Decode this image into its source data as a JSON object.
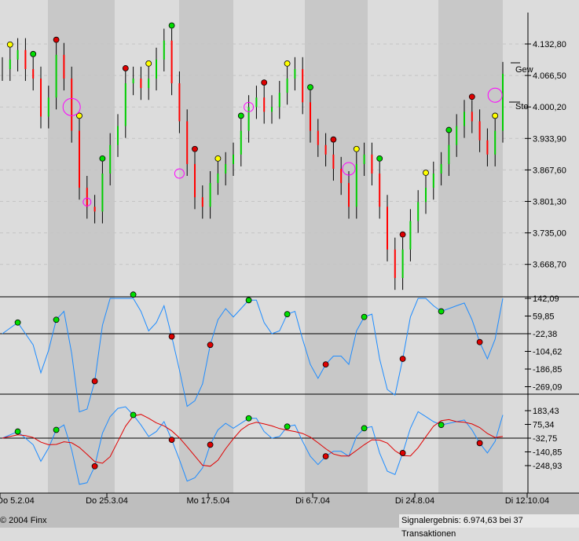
{
  "chart_data": {
    "type": "line",
    "title": "",
    "price_axis": {
      "ticks": [
        4132.8,
        4066.5,
        4000.2,
        3933.9,
        3867.6,
        3801.3,
        3735.0,
        3668.7
      ],
      "labels": [
        "4.132,80",
        "4.066,50",
        "4.000,20",
        "3.933,90",
        "3.867,60",
        "3.801,30",
        "3.735,00",
        "3.668,70"
      ]
    },
    "osc1_axis": {
      "ticks": [
        142.09,
        59.85,
        -22.38,
        -104.62,
        -186.85,
        -269.09
      ],
      "labels": [
        "142,09",
        "59,85",
        "-22,38",
        "-104,62",
        "-186,85",
        "-269,09"
      ]
    },
    "osc2_axis": {
      "ticks": [
        183.43,
        75.34,
        -32.75,
        -140.85,
        -248.93
      ],
      "labels": [
        "183,43",
        "75,34",
        "-32,75",
        "-140,85",
        "-248,93"
      ]
    },
    "x_labels": [
      "Do 5.2.04",
      "Do 25.3.04",
      "Mo 17.5.04",
      "Di 6.7.04",
      "Di 24.8.04",
      "Di 12.10.04"
    ],
    "closes": [
      4080,
      4100,
      4120,
      4080,
      4060,
      3980,
      4020,
      4110,
      4060,
      3950,
      3830,
      3790,
      3780,
      3860,
      3920,
      3960,
      4050,
      4060,
      4040,
      4060,
      4100,
      4140,
      4050,
      3970,
      3880,
      3810,
      3790,
      3840,
      3860,
      3880,
      3900,
      3950,
      4000,
      4020,
      3990,
      4000,
      4030,
      4060,
      4080,
      4010,
      3950,
      3920,
      3900,
      3870,
      3840,
      3790,
      3880,
      3900,
      3860,
      3790,
      3700,
      3640,
      3700,
      3760,
      3800,
      3830,
      3860,
      3880,
      3920,
      3960,
      3990,
      3970,
      3930,
      3900,
      3950,
      4070
    ],
    "annotations": {
      "upper": "Gew",
      "lower": "Sto"
    }
  },
  "colors": {
    "up": "#00cc00",
    "down": "#ff0000",
    "osc": "#1e8cff",
    "signal": "#e00000",
    "band": "#c8c8c8",
    "marker": "#ff00ff"
  },
  "footer": {
    "copyright": "© 2004 Finx",
    "result": "Signalergebnis: 6.974,63 bei 37 Transaktionen"
  }
}
